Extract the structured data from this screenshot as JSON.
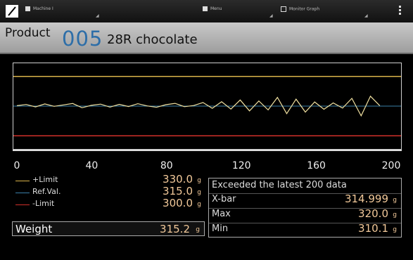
{
  "topbar": {
    "machine_label": "Machine I",
    "menu_label": "Menu",
    "monitor_label": "Monitor Graph"
  },
  "product": {
    "label": "Product",
    "number": "005",
    "name": "28R chocolate"
  },
  "graph": {
    "x_ticks": [
      "0",
      "40",
      "80",
      "120",
      "160",
      "200"
    ],
    "xlim": [
      0,
      200
    ],
    "colors": {
      "plus_limit": "#d9b24a",
      "ref_val": "#3a7fa8",
      "minus_limit": "#d0302a",
      "trace": "#f0e0a0"
    }
  },
  "legend": [
    {
      "label": "+Limit",
      "value": "330.0",
      "unit": "g",
      "color": "#d9b24a"
    },
    {
      "label": "Ref.Val.",
      "value": "315.0",
      "unit": "g",
      "color": "#3a7fa8"
    },
    {
      "label": "-Limit",
      "value": "300.0",
      "unit": "g",
      "color": "#d0302a"
    }
  ],
  "weight": {
    "label": "Weight",
    "value": "315.2",
    "unit": "g"
  },
  "stats": {
    "header": "Exceeded the latest 200 data",
    "rows": [
      {
        "label": "X-bar",
        "value": "314.999",
        "unit": "g"
      },
      {
        "label": "Max",
        "value": "320.0",
        "unit": "g"
      },
      {
        "label": "Min",
        "value": "310.1",
        "unit": "g"
      }
    ]
  },
  "chart_data": {
    "type": "line",
    "xlim": [
      0,
      200
    ],
    "x_ticks": [
      "0",
      "40",
      "80",
      "120",
      "160",
      "200"
    ],
    "reference_lines": [
      {
        "name": "+Limit",
        "value": 330.0
      },
      {
        "name": "Ref.Val.",
        "value": 315.0
      },
      {
        "name": "-Limit",
        "value": 300.0
      }
    ],
    "series": [
      {
        "x": [
          0,
          5,
          10,
          15,
          20,
          25,
          30,
          35,
          40,
          45,
          50,
          55,
          60,
          65,
          70,
          75,
          80,
          85,
          90,
          95,
          100,
          105,
          110,
          115,
          120,
          125,
          130,
          135,
          140,
          145,
          150,
          155,
          160,
          165,
          170,
          175,
          180,
          185,
          190,
          195
        ],
        "values": [
          315.2,
          315.8,
          314.6,
          316.1,
          314.9,
          315.6,
          316.3,
          314.2,
          315.4,
          316.0,
          314.5,
          315.9,
          314.8,
          316.2,
          315.1,
          314.4,
          315.7,
          316.4,
          314.7,
          315.3,
          316.8,
          313.9,
          317.2,
          313.5,
          318.1,
          312.6,
          317.6,
          313.1,
          319.4,
          311.2,
          318.5,
          312.0,
          317.1,
          313.4,
          316.6,
          314.0,
          318.9,
          310.1,
          320.0,
          315.2
        ]
      }
    ]
  }
}
